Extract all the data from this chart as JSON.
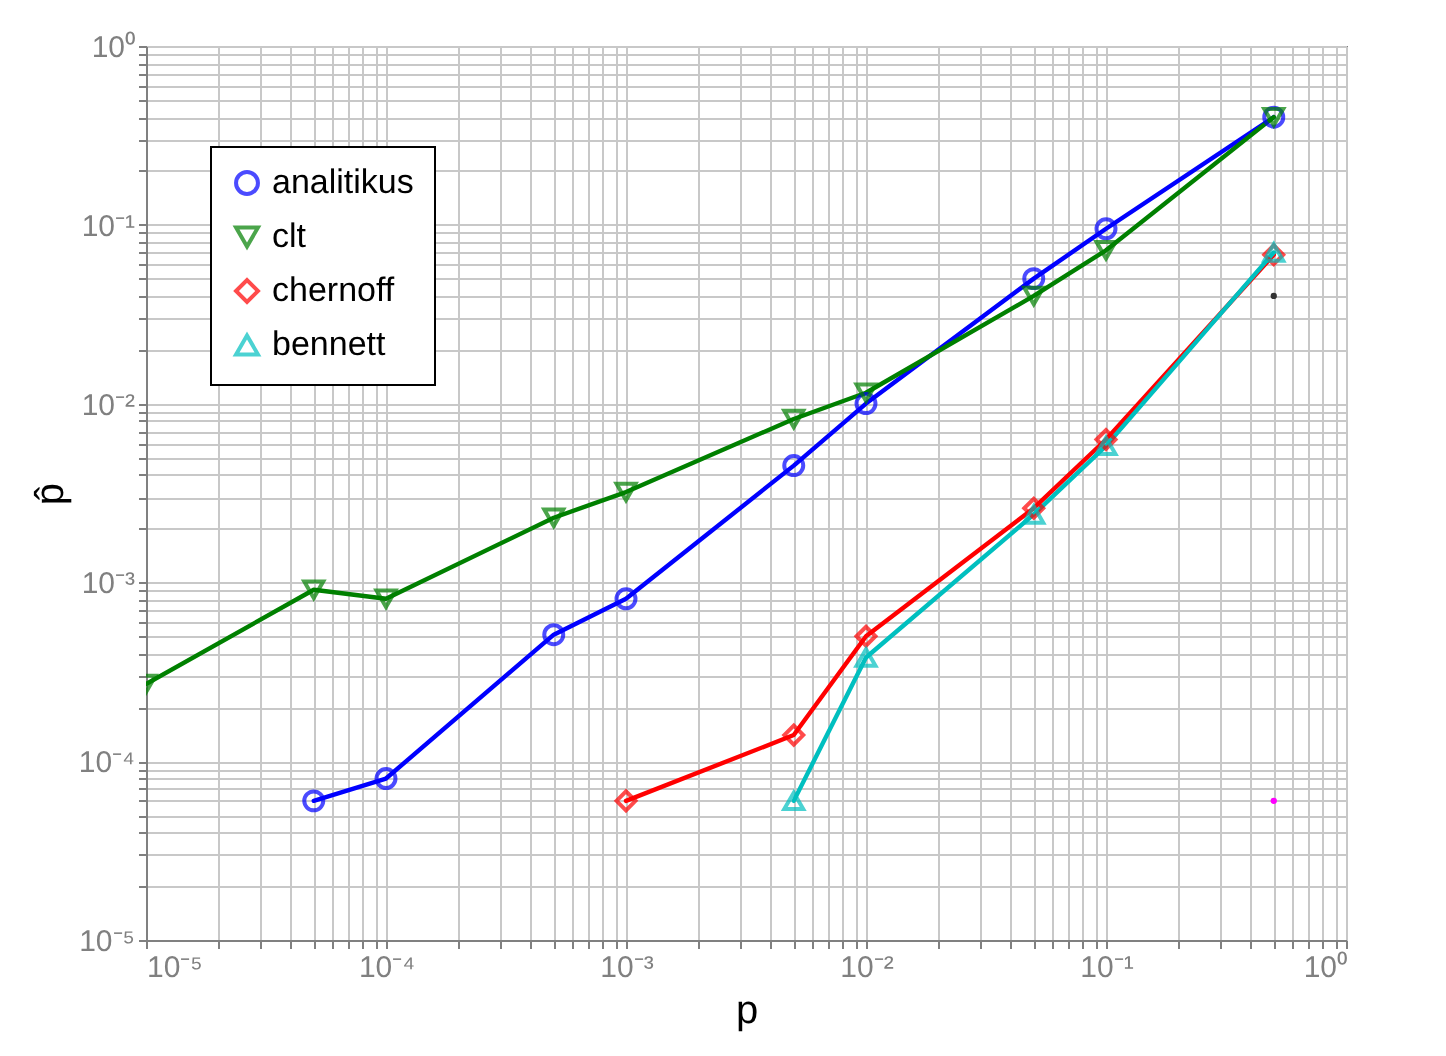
{
  "chart_data": {
    "type": "line",
    "xlabel": "p",
    "ylabel": "p̂",
    "log": "xy",
    "grid": true,
    "legend": "top left",
    "xlim": [
      1e-05,
      1
    ],
    "ylim": [
      1e-05,
      1
    ],
    "xticks": [
      {
        "value": 1e-05,
        "label": "10⁻⁵"
      },
      {
        "value": 0.0001,
        "label": "10⁻⁴"
      },
      {
        "value": 0.001,
        "label": "10⁻³"
      },
      {
        "value": 0.01,
        "label": "10⁻²"
      },
      {
        "value": 0.1,
        "label": "10⁻¹"
      },
      {
        "value": 1,
        "label": "10⁰"
      }
    ],
    "yticks": [
      {
        "value": 1e-05,
        "label": "10⁻⁵"
      },
      {
        "value": 0.0001,
        "label": "10⁻⁴"
      },
      {
        "value": 0.001,
        "label": "10⁻³"
      },
      {
        "value": 0.01,
        "label": "10⁻²"
      },
      {
        "value": 0.1,
        "label": "10⁻¹"
      },
      {
        "value": 1,
        "label": "10⁰"
      }
    ],
    "series": [
      {
        "name": "analitikus",
        "color": "#0000ff",
        "marker": "circle",
        "x": [
          5e-05,
          0.0001,
          0.0005,
          0.001,
          0.005,
          0.01,
          0.05,
          0.1,
          0.5
        ],
        "values": [
          6e-05,
          8e-05,
          0.00051,
          0.00081,
          0.0045,
          0.01,
          0.05,
          0.095,
          0.4
        ]
      },
      {
        "name": "clt",
        "color": "#008000",
        "marker": "triangle-down",
        "x": [
          1e-05,
          5e-05,
          0.0001,
          0.0005,
          0.001,
          0.005,
          0.01,
          0.05,
          0.1,
          0.5
        ],
        "values": [
          0.00027,
          0.00091,
          0.00081,
          0.0023,
          0.0032,
          0.0082,
          0.0115,
          0.04,
          0.072,
          0.4
        ]
      },
      {
        "name": "chernoff",
        "color": "#ff0000",
        "marker": "diamond",
        "x": [
          0.001,
          0.005,
          0.01,
          0.05,
          0.1,
          0.5
        ],
        "values": [
          6e-05,
          0.00014,
          0.0005,
          0.0026,
          0.0063,
          0.068
        ]
      },
      {
        "name": "bennett",
        "color": "#00bfbf",
        "marker": "triangle-up",
        "x": [
          0.005,
          0.01,
          0.05,
          0.1,
          0.5
        ],
        "values": [
          6e-05,
          0.00038,
          0.0024,
          0.0058,
          0.07
        ]
      },
      {
        "type": "scatter",
        "color": "#333333",
        "marker": "circle",
        "x": [
          0.5
        ],
        "values": [
          0.04
        ]
      },
      {
        "type": "scatter",
        "color": "#ff00ff",
        "marker": "circle",
        "x": [
          0.5
        ],
        "values": [
          6e-05
        ]
      }
    ]
  }
}
